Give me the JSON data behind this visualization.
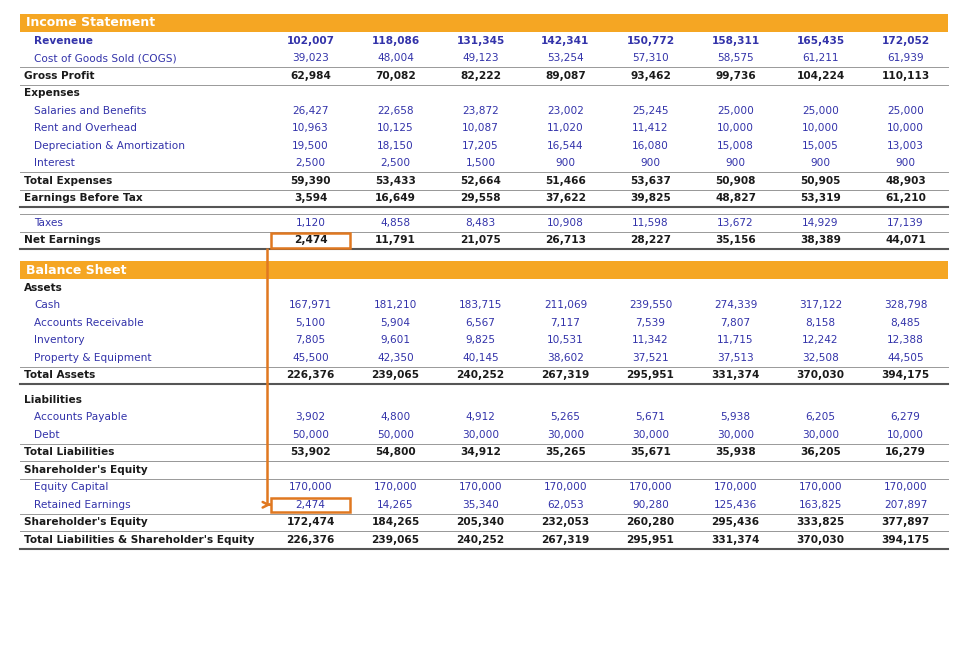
{
  "income_statement_header": "Income Statement",
  "balance_sheet_header": "Balance Sheet",
  "header_bg": "#F5A623",
  "header_text_color": "#FFFFFF",
  "income_rows": [
    {
      "label": "Reveneue",
      "values": [
        102007,
        118086,
        131345,
        142341,
        150772,
        158311,
        165435,
        172052
      ],
      "style": "blue_bold"
    },
    {
      "label": "Cost of Goods Sold (COGS)",
      "values": [
        39023,
        48004,
        49123,
        53254,
        57310,
        58575,
        61211,
        61939
      ],
      "style": "blue"
    },
    {
      "label": "Gross Profit",
      "values": [
        62984,
        70082,
        82222,
        89087,
        93462,
        99736,
        104224,
        110113
      ],
      "style": "bold"
    },
    {
      "label": "Expenses",
      "values": null,
      "style": "subheader"
    },
    {
      "label": "Salaries and Benefits",
      "values": [
        26427,
        22658,
        23872,
        23002,
        25245,
        25000,
        25000,
        25000
      ],
      "style": "blue"
    },
    {
      "label": "Rent and Overhead",
      "values": [
        10963,
        10125,
        10087,
        11020,
        11412,
        10000,
        10000,
        10000
      ],
      "style": "blue"
    },
    {
      "label": "Depreciation & Amortization",
      "values": [
        19500,
        18150,
        17205,
        16544,
        16080,
        15008,
        15005,
        13003
      ],
      "style": "blue"
    },
    {
      "label": "Interest",
      "values": [
        2500,
        2500,
        1500,
        900,
        900,
        900,
        900,
        900
      ],
      "style": "blue"
    },
    {
      "label": "Total Expenses",
      "values": [
        59390,
        53433,
        52664,
        51466,
        53637,
        50908,
        50905,
        48903
      ],
      "style": "bold"
    },
    {
      "label": "Earnings Before Tax",
      "values": [
        3594,
        16649,
        29558,
        37622,
        39825,
        48827,
        53319,
        61210
      ],
      "style": "bold"
    },
    {
      "label": "",
      "values": null,
      "style": "spacer"
    },
    {
      "label": "Taxes",
      "values": [
        1120,
        4858,
        8483,
        10908,
        11598,
        13672,
        14929,
        17139
      ],
      "style": "blue"
    },
    {
      "label": "Net Earnings",
      "values": [
        2474,
        11791,
        21075,
        26713,
        28227,
        35156,
        38389,
        44071
      ],
      "style": "bold_highlight"
    }
  ],
  "balance_rows": [
    {
      "label": "Assets",
      "values": null,
      "style": "subheader"
    },
    {
      "label": "Cash",
      "values": [
        167971,
        181210,
        183715,
        211069,
        239550,
        274339,
        317122,
        328798
      ],
      "style": "blue"
    },
    {
      "label": "Accounts Receivable",
      "values": [
        5100,
        5904,
        6567,
        7117,
        7539,
        7807,
        8158,
        8485
      ],
      "style": "blue"
    },
    {
      "label": "Inventory",
      "values": [
        7805,
        9601,
        9825,
        10531,
        11342,
        11715,
        12242,
        12388
      ],
      "style": "blue"
    },
    {
      "label": "Property & Equipment",
      "values": [
        45500,
        42350,
        40145,
        38602,
        37521,
        37513,
        32508,
        44505
      ],
      "style": "blue"
    },
    {
      "label": "Total Assets",
      "values": [
        226376,
        239065,
        240252,
        267319,
        295951,
        331374,
        370030,
        394175
      ],
      "style": "bold"
    },
    {
      "label": "",
      "values": null,
      "style": "spacer"
    },
    {
      "label": "Liabilities",
      "values": null,
      "style": "subheader"
    },
    {
      "label": "Accounts Payable",
      "values": [
        3902,
        4800,
        4912,
        5265,
        5671,
        5938,
        6205,
        6279
      ],
      "style": "blue"
    },
    {
      "label": "Debt",
      "values": [
        50000,
        50000,
        30000,
        30000,
        30000,
        30000,
        30000,
        10000
      ],
      "style": "blue"
    },
    {
      "label": "Total Liabilities",
      "values": [
        53902,
        54800,
        34912,
        35265,
        35671,
        35938,
        36205,
        16279
      ],
      "style": "bold"
    },
    {
      "label": "Shareholder's Equity",
      "values": null,
      "style": "subheader"
    },
    {
      "label": "Equity Capital",
      "values": [
        170000,
        170000,
        170000,
        170000,
        170000,
        170000,
        170000,
        170000
      ],
      "style": "blue"
    },
    {
      "label": "Retained Earnings",
      "values": [
        2474,
        14265,
        35340,
        62053,
        90280,
        125436,
        163825,
        207897
      ],
      "style": "blue_highlight"
    },
    {
      "label": "Shareholder's Equity",
      "values": [
        172474,
        184265,
        205340,
        232053,
        260280,
        295436,
        333825,
        377897
      ],
      "style": "bold"
    },
    {
      "label": "Total Liabilities & Shareholder's Equity",
      "values": [
        226376,
        239065,
        240252,
        267319,
        295951,
        331374,
        370030,
        394175
      ],
      "style": "bold"
    }
  ],
  "blue_color": "#3333AA",
  "bold_color": "#1a1a1a",
  "orange_color": "#E07820",
  "bg_color": "#FFFFFF",
  "line_color": "#999999",
  "thick_line_color": "#555555"
}
